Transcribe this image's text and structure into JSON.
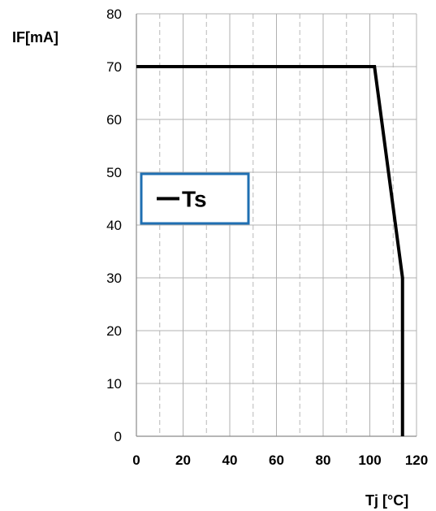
{
  "chart_data": {
    "type": "line",
    "xlabel": "Tj [°C]",
    "ylabel": "IF[mA]",
    "xlim": [
      0,
      120
    ],
    "ylim": [
      0,
      80
    ],
    "x_ticks": [
      0,
      20,
      40,
      60,
      80,
      100,
      120
    ],
    "y_ticks": [
      0,
      10,
      20,
      30,
      40,
      50,
      60,
      70,
      80
    ],
    "x_tick_labels": [
      "0",
      "20",
      "40",
      "60",
      "80",
      "100",
      "120"
    ],
    "y_tick_labels": [
      "0",
      "10",
      "20",
      "30",
      "40",
      "50",
      "60",
      "70",
      "80"
    ],
    "grid": {
      "major": true,
      "minor_x_dashed": true
    },
    "legend": {
      "placement": "center-left",
      "border_color": "#1f6fb2"
    },
    "series": [
      {
        "name": "Ts",
        "color": "#000000",
        "x": [
          0,
          102,
          114,
          114
        ],
        "y": [
          70,
          70,
          30,
          0
        ]
      }
    ]
  }
}
